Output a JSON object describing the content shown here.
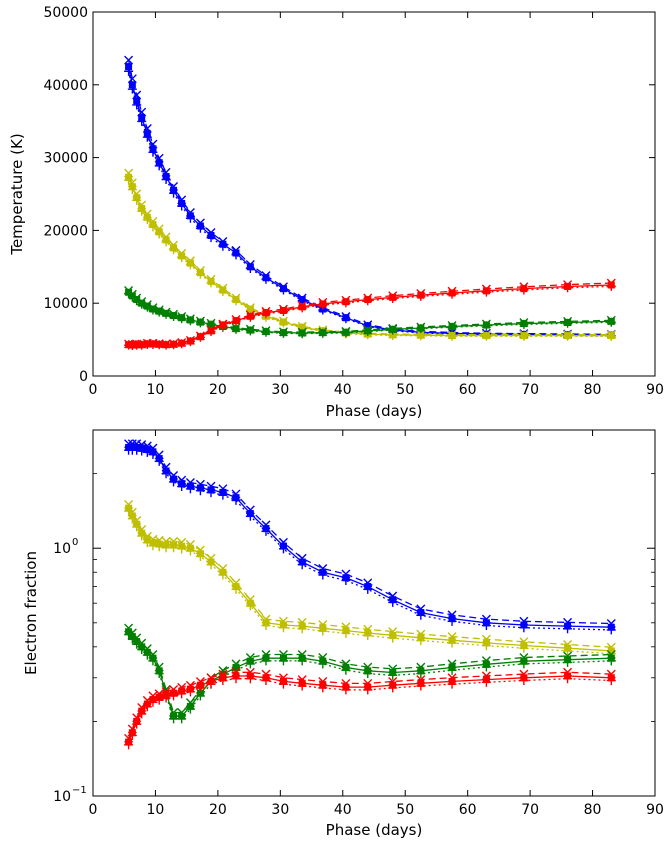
{
  "chart_data": [
    {
      "type": "line",
      "xlabel": "Phase (days)",
      "ylabel": "Temperature (K)",
      "xlim": [
        0,
        90
      ],
      "ylim": [
        0,
        50000
      ],
      "xscale": "linear",
      "yscale": "linear",
      "xticks": [
        "0",
        "10",
        "20",
        "30",
        "40",
        "50",
        "60",
        "70",
        "80",
        "90"
      ],
      "yticks": [
        "0",
        "10000",
        "20000",
        "30000",
        "40000",
        "50000"
      ],
      "grid": false,
      "legend": "none",
      "series": [
        {
          "color": "#0000ff",
          "x": [
            5.7,
            6.3,
            7.0,
            7.8,
            8.7,
            9.6,
            10.6,
            11.7,
            12.9,
            14.2,
            15.6,
            17.2,
            18.9,
            20.8,
            22.9,
            25.2,
            27.7,
            30.5,
            33.5,
            36.8,
            40.5,
            44.0,
            48.0,
            52.5,
            57.5,
            63.0,
            69.0,
            76.0,
            83.0
          ],
          "values": [
            42500,
            40000,
            37800,
            35500,
            33300,
            31200,
            29300,
            27400,
            25500,
            23700,
            22000,
            20600,
            19300,
            18100,
            16900,
            15000,
            13500,
            12000,
            10500,
            9200,
            8000,
            6900,
            6300,
            6000,
            5850,
            5750,
            5700,
            5650,
            5600
          ]
        },
        {
          "color": "#bfbf00",
          "x": [
            5.7,
            6.3,
            7.0,
            7.8,
            8.7,
            9.6,
            10.6,
            11.7,
            12.9,
            14.2,
            15.6,
            17.2,
            18.9,
            20.8,
            22.9,
            25.2,
            27.7,
            30.5,
            33.5,
            36.8,
            40.5,
            44.0,
            48.0,
            52.5,
            57.5,
            63.0,
            69.0,
            76.0,
            83.0
          ],
          "values": [
            27300,
            26000,
            24500,
            23000,
            21800,
            20800,
            19800,
            18700,
            17600,
            16500,
            15500,
            14200,
            13000,
            11800,
            10500,
            9200,
            8200,
            7400,
            6700,
            6200,
            5900,
            5750,
            5650,
            5600,
            5550,
            5550,
            5550,
            5550,
            5550
          ]
        },
        {
          "color": "#008000",
          "x": [
            5.7,
            6.3,
            7.0,
            7.8,
            8.7,
            9.6,
            10.6,
            11.7,
            12.9,
            14.2,
            15.6,
            17.2,
            18.9,
            20.8,
            22.9,
            25.2,
            27.7,
            30.5,
            33.5,
            36.8,
            40.5,
            44.0,
            48.0,
            52.5,
            57.5,
            63.0,
            69.0,
            76.0,
            83.0
          ],
          "values": [
            11500,
            11000,
            10500,
            10000,
            9600,
            9200,
            8900,
            8600,
            8300,
            8000,
            7700,
            7400,
            7100,
            6800,
            6500,
            6300,
            6100,
            5950,
            5900,
            5950,
            6000,
            6200,
            6400,
            6600,
            6800,
            7000,
            7200,
            7350,
            7500
          ]
        },
        {
          "color": "#ff0000",
          "x": [
            5.7,
            6.3,
            7.0,
            7.8,
            8.7,
            9.6,
            10.6,
            11.7,
            12.9,
            14.2,
            15.6,
            17.2,
            18.9,
            20.8,
            22.9,
            25.2,
            27.7,
            30.5,
            33.5,
            36.8,
            40.5,
            44.0,
            48.0,
            52.5,
            57.5,
            63.0,
            69.0,
            76.0,
            83.0
          ],
          "values": [
            4300,
            4250,
            4300,
            4300,
            4400,
            4400,
            4350,
            4300,
            4350,
            4500,
            4800,
            5400,
            6200,
            7000,
            7600,
            8200,
            8700,
            9000,
            9500,
            9900,
            10200,
            10500,
            10800,
            11100,
            11400,
            11700,
            12000,
            12300,
            12500
          ]
        }
      ]
    },
    {
      "type": "line",
      "xlabel": "Phase (days)",
      "ylabel": "Electron fraction",
      "xlim": [
        0,
        90
      ],
      "ylim": [
        0.1,
        3.0
      ],
      "xscale": "linear",
      "yscale": "log",
      "xticks": [
        "0",
        "10",
        "20",
        "30",
        "40",
        "50",
        "60",
        "70",
        "80",
        "90"
      ],
      "yticks": [
        {
          "value": 0.1,
          "base": "10",
          "exp": "−1"
        },
        {
          "value": 1.0,
          "base": "10",
          "exp": "0"
        }
      ],
      "grid": false,
      "legend": "none",
      "series": [
        {
          "color": "#0000ff",
          "x": [
            5.7,
            6.3,
            7.0,
            7.8,
            8.7,
            9.6,
            10.6,
            11.7,
            12.9,
            14.2,
            15.6,
            17.2,
            18.9,
            20.8,
            22.9,
            25.2,
            27.7,
            30.5,
            33.5,
            36.8,
            40.5,
            44.0,
            48.0,
            52.5,
            57.5,
            63.0,
            69.0,
            76.0,
            83.0
          ],
          "values": [
            2.55,
            2.55,
            2.55,
            2.53,
            2.5,
            2.45,
            2.3,
            2.05,
            1.9,
            1.82,
            1.78,
            1.75,
            1.72,
            1.68,
            1.6,
            1.38,
            1.2,
            1.02,
            0.88,
            0.8,
            0.76,
            0.7,
            0.62,
            0.55,
            0.52,
            0.5,
            0.49,
            0.485,
            0.48
          ]
        },
        {
          "color": "#bfbf00",
          "x": [
            5.7,
            6.3,
            7.0,
            7.8,
            8.7,
            9.6,
            10.6,
            11.7,
            12.9,
            14.2,
            15.6,
            17.2,
            18.9,
            20.8,
            22.9,
            25.2,
            27.7,
            30.5,
            33.5,
            36.8,
            40.5,
            44.0,
            48.0,
            52.5,
            57.5,
            63.0,
            69.0,
            76.0,
            83.0
          ],
          "values": [
            1.45,
            1.35,
            1.25,
            1.15,
            1.08,
            1.05,
            1.04,
            1.03,
            1.03,
            1.02,
            1.0,
            0.95,
            0.88,
            0.8,
            0.7,
            0.6,
            0.5,
            0.49,
            0.485,
            0.475,
            0.465,
            0.455,
            0.445,
            0.435,
            0.425,
            0.415,
            0.405,
            0.395,
            0.385
          ]
        },
        {
          "color": "#008000",
          "x": [
            5.7,
            6.3,
            7.0,
            7.8,
            8.7,
            9.6,
            10.6,
            11.7,
            12.9,
            14.2,
            15.6,
            17.2,
            18.9,
            20.8,
            22.9,
            25.2,
            27.7,
            30.5,
            33.5,
            36.8,
            40.5,
            44.0,
            48.0,
            52.5,
            57.5,
            63.0,
            69.0,
            76.0,
            83.0
          ],
          "values": [
            0.46,
            0.44,
            0.42,
            0.4,
            0.38,
            0.36,
            0.32,
            0.26,
            0.21,
            0.21,
            0.23,
            0.26,
            0.29,
            0.31,
            0.33,
            0.35,
            0.36,
            0.36,
            0.36,
            0.35,
            0.33,
            0.32,
            0.315,
            0.32,
            0.33,
            0.34,
            0.35,
            0.355,
            0.36
          ]
        },
        {
          "color": "#ff0000",
          "x": [
            5.7,
            6.3,
            7.0,
            7.8,
            8.7,
            9.6,
            10.6,
            11.7,
            12.9,
            14.2,
            15.6,
            17.2,
            18.9,
            20.8,
            22.9,
            25.2,
            27.7,
            30.5,
            33.5,
            36.8,
            40.5,
            44.0,
            48.0,
            52.5,
            57.5,
            63.0,
            69.0,
            76.0,
            83.0
          ],
          "values": [
            0.165,
            0.18,
            0.2,
            0.22,
            0.235,
            0.245,
            0.25,
            0.255,
            0.26,
            0.265,
            0.27,
            0.28,
            0.29,
            0.3,
            0.305,
            0.305,
            0.3,
            0.29,
            0.285,
            0.28,
            0.275,
            0.275,
            0.28,
            0.285,
            0.29,
            0.295,
            0.3,
            0.305,
            0.3
          ]
        }
      ]
    }
  ]
}
